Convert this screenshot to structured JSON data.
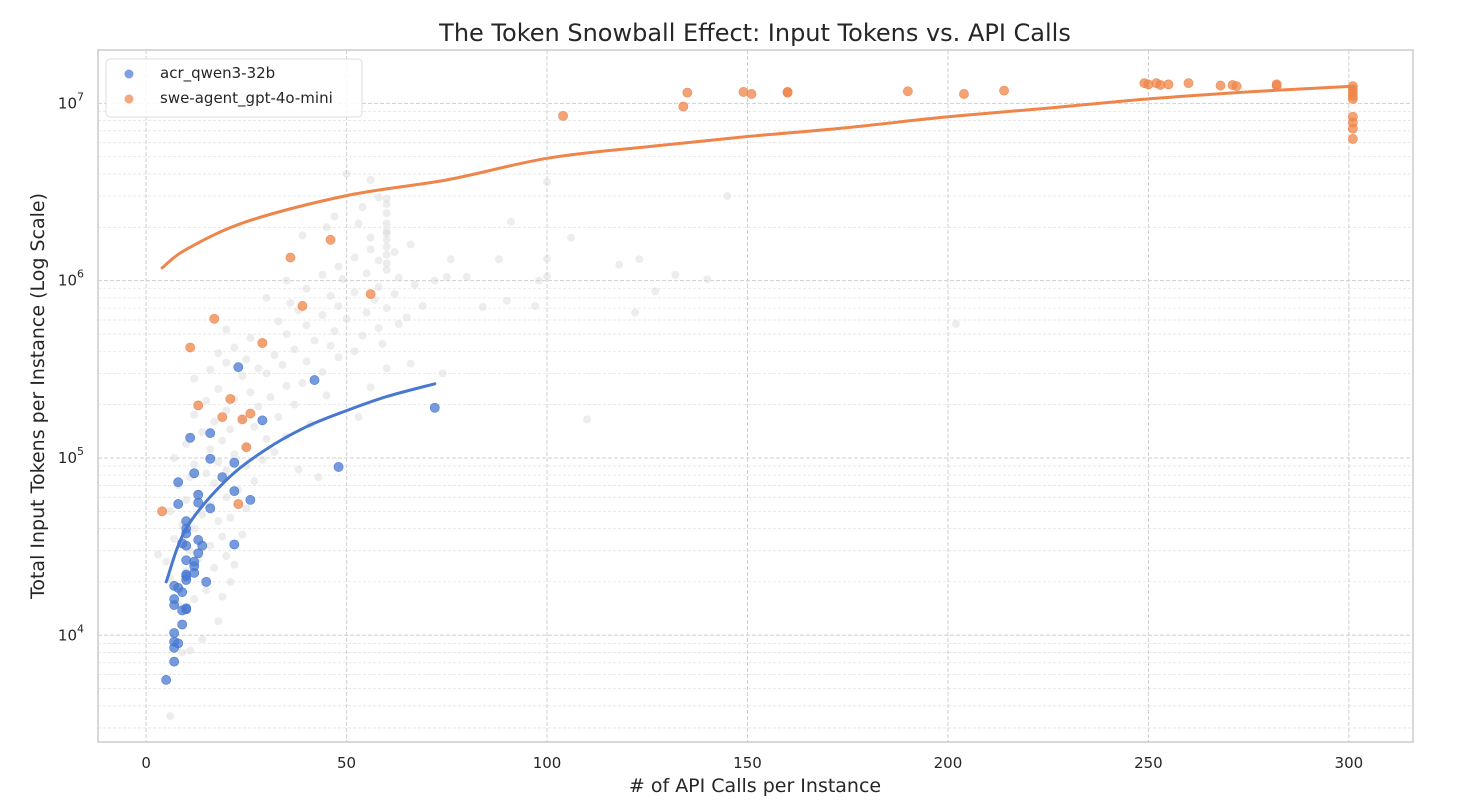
{
  "chart_data": {
    "type": "scatter",
    "title": "The Token Snowball Effect: Input Tokens vs. API Calls",
    "xlabel": "# of API Calls per Instance",
    "ylabel": "Total Input Tokens per Instance (Log Scale)",
    "xlim": [
      -12,
      316
    ],
    "ylim": [
      2500,
      20000000
    ],
    "yscale": "log",
    "grid": true,
    "legend_position": "top-left",
    "x_ticks": [
      0,
      50,
      100,
      150,
      200,
      250,
      300
    ],
    "y_ticks": [
      {
        "value": 10000,
        "base": "10",
        "exp": "4"
      },
      {
        "value": 100000,
        "base": "10",
        "exp": "5"
      },
      {
        "value": 1000000,
        "base": "10",
        "exp": "6"
      },
      {
        "value": 10000000,
        "base": "10",
        "exp": "7"
      }
    ],
    "series": [
      {
        "name": "acr_qwen3-32b",
        "color": "#4878d0",
        "points": [
          [
            5,
            5600
          ],
          [
            7,
            7100
          ],
          [
            7,
            8500
          ],
          [
            7,
            9200
          ],
          [
            8,
            9000
          ],
          [
            7,
            10300
          ],
          [
            9,
            11500
          ],
          [
            9,
            13800
          ],
          [
            10,
            14200
          ],
          [
            10,
            14000
          ],
          [
            7,
            14800
          ],
          [
            7,
            16000
          ],
          [
            9,
            17500
          ],
          [
            8,
            18500
          ],
          [
            7,
            19000
          ],
          [
            10,
            20500
          ],
          [
            15,
            20000
          ],
          [
            10,
            21500
          ],
          [
            12,
            22500
          ],
          [
            10,
            22000
          ],
          [
            12,
            24500
          ],
          [
            12,
            26000
          ],
          [
            10,
            26500
          ],
          [
            13,
            29000
          ],
          [
            14,
            32000
          ],
          [
            10,
            32000
          ],
          [
            9,
            33000
          ],
          [
            13,
            34500
          ],
          [
            10,
            37500
          ],
          [
            22,
            32500
          ],
          [
            10,
            40000
          ],
          [
            10,
            44000
          ],
          [
            16,
            52000
          ],
          [
            8,
            55000
          ],
          [
            13,
            56000
          ],
          [
            13,
            62000
          ],
          [
            22,
            65000
          ],
          [
            26,
            58000
          ],
          [
            8,
            73000
          ],
          [
            12,
            82000
          ],
          [
            19,
            78000
          ],
          [
            16,
            99000
          ],
          [
            22,
            94000
          ],
          [
            48,
            89000
          ],
          [
            11,
            130000
          ],
          [
            16,
            138000
          ],
          [
            29,
            163000
          ],
          [
            72,
            192000
          ],
          [
            42,
            275000
          ],
          [
            23,
            325000
          ]
        ],
        "trend": [
          [
            5,
            20000
          ],
          [
            10,
            40000
          ],
          [
            20,
            75000
          ],
          [
            30,
            112000
          ],
          [
            40,
            150000
          ],
          [
            50,
            185000
          ],
          [
            60,
            222000
          ],
          [
            72,
            262000
          ]
        ]
      },
      {
        "name": "swe-agent_gpt-4o-mini",
        "color": "#ee854a",
        "points": [
          [
            4,
            50000
          ],
          [
            23,
            55000
          ],
          [
            25,
            115000
          ],
          [
            21,
            215000
          ],
          [
            19,
            170000
          ],
          [
            24,
            165000
          ],
          [
            26,
            178000
          ],
          [
            13,
            198000
          ],
          [
            11,
            420000
          ],
          [
            17,
            610000
          ],
          [
            29,
            445000
          ],
          [
            39,
            720000
          ],
          [
            36,
            1350000
          ],
          [
            46,
            1700000
          ],
          [
            56,
            840000
          ],
          [
            104,
            8500000
          ],
          [
            134,
            9600000
          ],
          [
            135,
            11500000
          ],
          [
            149,
            11600000
          ],
          [
            151,
            11300000
          ],
          [
            160,
            11500000
          ],
          [
            160,
            11600000
          ],
          [
            190,
            11700000
          ],
          [
            204,
            11300000
          ],
          [
            214,
            11800000
          ],
          [
            249,
            13000000
          ],
          [
            250,
            12800000
          ],
          [
            252,
            13000000
          ],
          [
            253,
            12700000
          ],
          [
            255,
            12800000
          ],
          [
            260,
            13000000
          ],
          [
            268,
            12600000
          ],
          [
            271,
            12700000
          ],
          [
            272,
            12500000
          ],
          [
            282,
            12800000
          ],
          [
            282,
            12600000
          ],
          [
            301,
            12500000
          ],
          [
            301,
            12000000
          ],
          [
            301,
            11500000
          ],
          [
            301,
            11000000
          ],
          [
            301,
            10600000
          ],
          [
            301,
            8400000
          ],
          [
            301,
            7800000
          ],
          [
            301,
            7200000
          ],
          [
            301,
            6300000
          ]
        ],
        "trend": [
          [
            4,
            1180000
          ],
          [
            10,
            1500000
          ],
          [
            25,
            2150000
          ],
          [
            50,
            3020000
          ],
          [
            75,
            3700000
          ],
          [
            100,
            4900000
          ],
          [
            125,
            5700000
          ],
          [
            150,
            6500000
          ],
          [
            175,
            7300000
          ],
          [
            200,
            8400000
          ],
          [
            225,
            9400000
          ],
          [
            250,
            10600000
          ],
          [
            275,
            11600000
          ],
          [
            301,
            12500000
          ]
        ]
      },
      {
        "name": "",
        "color": "#d6d6d6",
        "points": [
          [
            6,
            3500
          ],
          [
            9,
            8000
          ],
          [
            11,
            8200
          ],
          [
            14,
            9500
          ],
          [
            18,
            12000
          ],
          [
            8,
            15000
          ],
          [
            12,
            16000
          ],
          [
            19,
            16500
          ],
          [
            15,
            18000
          ],
          [
            21,
            20000
          ],
          [
            6,
            21000
          ],
          [
            10,
            23000
          ],
          [
            17,
            24000
          ],
          [
            22,
            25000
          ],
          [
            5,
            26000
          ],
          [
            13,
            27000
          ],
          [
            20,
            28000
          ],
          [
            3,
            28500
          ],
          [
            11,
            30000
          ],
          [
            16,
            32000
          ],
          [
            7,
            35000
          ],
          [
            19,
            36000
          ],
          [
            24,
            37000
          ],
          [
            12,
            40000
          ],
          [
            9,
            42000
          ],
          [
            18,
            44000
          ],
          [
            21,
            46000
          ],
          [
            14,
            48000
          ],
          [
            6,
            50000
          ],
          [
            25,
            52000
          ],
          [
            16,
            55000
          ],
          [
            10,
            58000
          ],
          [
            20,
            60000
          ],
          [
            13,
            63000
          ],
          [
            23,
            66000
          ],
          [
            8,
            70000
          ],
          [
            17,
            72000
          ],
          [
            27,
            74000
          ],
          [
            11,
            78000
          ],
          [
            43,
            78000
          ],
          [
            15,
            82000
          ],
          [
            20,
            85000
          ],
          [
            38,
            86000
          ],
          [
            25,
            90000
          ],
          [
            12,
            92000
          ],
          [
            18,
            95000
          ],
          [
            29,
            98000
          ],
          [
            7,
            100000
          ],
          [
            22,
            105000
          ],
          [
            32,
            108000
          ],
          [
            16,
            112000
          ],
          [
            25,
            115000
          ],
          [
            10,
            120000
          ],
          [
            19,
            125000
          ],
          [
            30,
            128000
          ],
          [
            35,
            132000
          ],
          [
            14,
            140000
          ],
          [
            21,
            145000
          ],
          [
            27,
            150000
          ],
          [
            41,
            155000
          ],
          [
            17,
            160000
          ],
          [
            24,
            165000
          ],
          [
            33,
            170000
          ],
          [
            53,
            170000
          ],
          [
            110,
            165000
          ],
          [
            12,
            175000
          ],
          [
            20,
            185000
          ],
          [
            28,
            195000
          ],
          [
            37,
            200000
          ],
          [
            15,
            210000
          ],
          [
            22,
            215000
          ],
          [
            31,
            220000
          ],
          [
            45,
            225000
          ],
          [
            26,
            235000
          ],
          [
            18,
            245000
          ],
          [
            35,
            255000
          ],
          [
            56,
            250000
          ],
          [
            39,
            265000
          ],
          [
            12,
            280000
          ],
          [
            24,
            290000
          ],
          [
            30,
            300000
          ],
          [
            44,
            305000
          ],
          [
            16,
            315000
          ],
          [
            28,
            320000
          ],
          [
            60,
            320000
          ],
          [
            74,
            300000
          ],
          [
            34,
            335000
          ],
          [
            20,
            345000
          ],
          [
            40,
            350000
          ],
          [
            66,
            340000
          ],
          [
            25,
            360000
          ],
          [
            48,
            370000
          ],
          [
            32,
            380000
          ],
          [
            18,
            390000
          ],
          [
            52,
            400000
          ],
          [
            37,
            410000
          ],
          [
            22,
            420000
          ],
          [
            46,
            430000
          ],
          [
            59,
            440000
          ],
          [
            29,
            450000
          ],
          [
            42,
            460000
          ],
          [
            26,
            475000
          ],
          [
            54,
            490000
          ],
          [
            35,
            500000
          ],
          [
            47,
            520000
          ],
          [
            20,
            530000
          ],
          [
            58,
            540000
          ],
          [
            40,
            560000
          ],
          [
            63,
            570000
          ],
          [
            33,
            590000
          ],
          [
            50,
            610000
          ],
          [
            65,
            620000
          ],
          [
            44,
            640000
          ],
          [
            55,
            660000
          ],
          [
            38,
            680000
          ],
          [
            122,
            660000
          ],
          [
            60,
            700000
          ],
          [
            48,
            720000
          ],
          [
            69,
            720000
          ],
          [
            84,
            710000
          ],
          [
            97,
            720000
          ],
          [
            202,
            570000
          ],
          [
            36,
            750000
          ],
          [
            57,
            780000
          ],
          [
            30,
            800000
          ],
          [
            46,
            820000
          ],
          [
            62,
            840000
          ],
          [
            52,
            860000
          ],
          [
            90,
            770000
          ],
          [
            40,
            900000
          ],
          [
            58,
            920000
          ],
          [
            67,
            950000
          ],
          [
            35,
            1000000
          ],
          [
            49,
            1020000
          ],
          [
            63,
            1040000
          ],
          [
            80,
            1050000
          ],
          [
            44,
            1080000
          ],
          [
            55,
            1100000
          ],
          [
            72,
            1000000
          ],
          [
            98,
            1000000
          ],
          [
            60,
            1150000
          ],
          [
            75,
            1050000
          ],
          [
            100,
            1060000
          ],
          [
            48,
            1200000
          ],
          [
            60,
            1250000
          ],
          [
            118,
            1230000
          ],
          [
            127,
            870000
          ],
          [
            58,
            1300000
          ],
          [
            76,
            1320000
          ],
          [
            132,
            1080000
          ],
          [
            140,
            1020000
          ],
          [
            52,
            1350000
          ],
          [
            60,
            1400000
          ],
          [
            88,
            1320000
          ],
          [
            62,
            1450000
          ],
          [
            123,
            1320000
          ],
          [
            56,
            1500000
          ],
          [
            60,
            1550000
          ],
          [
            100,
            1330000
          ],
          [
            66,
            1600000
          ],
          [
            60,
            1700000
          ],
          [
            56,
            1750000
          ],
          [
            39,
            1800000
          ],
          [
            60,
            1850000
          ],
          [
            106,
            1750000
          ],
          [
            60,
            1900000
          ],
          [
            45,
            2000000
          ],
          [
            60,
            2100000
          ],
          [
            91,
            2150000
          ],
          [
            60,
            2400000
          ],
          [
            54,
            2600000
          ],
          [
            60,
            2900000
          ],
          [
            58,
            2950000
          ],
          [
            145,
            3000000
          ],
          [
            56,
            3700000
          ],
          [
            100,
            3600000
          ],
          [
            50,
            4000000
          ],
          [
            60,
            2700000
          ],
          [
            47,
            2300000
          ],
          [
            53,
            2100000
          ]
        ]
      }
    ]
  }
}
